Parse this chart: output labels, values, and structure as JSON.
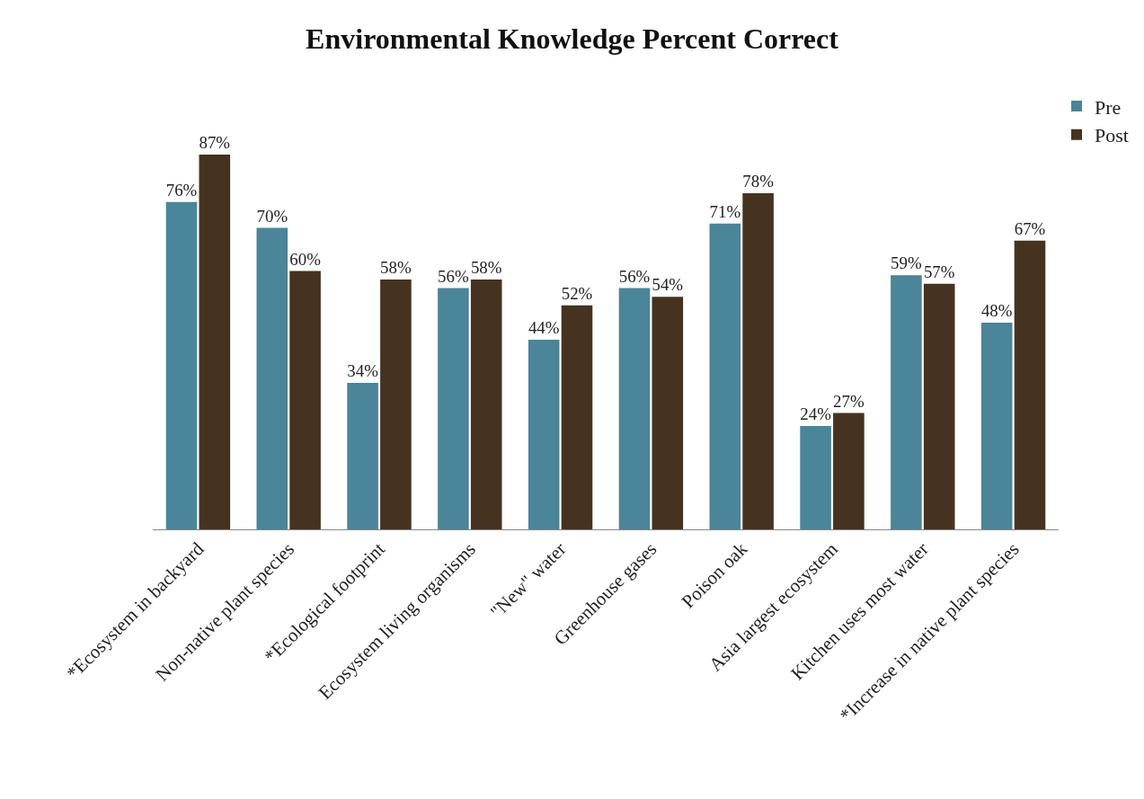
{
  "chart_data": {
    "type": "bar",
    "title": "Environmental Knowledge Percent Correct",
    "categories": [
      "*Ecosystem in backyard",
      "Non-native plant species",
      "*Ecological footprint",
      "Ecosystem living organisms",
      "\"New\" water",
      "Greenhouse gases",
      "Poison oak",
      "Asia largest ecosystem",
      "Kitchen uses most water",
      "*Increase in native plant species"
    ],
    "series": [
      {
        "name": "Pre",
        "color": "#4a8599",
        "values": [
          76,
          70,
          34,
          56,
          44,
          56,
          71,
          24,
          59,
          48
        ],
        "value_labels": [
          "76%",
          "70%",
          "34%",
          "56%",
          "44%",
          "56%",
          "71%",
          "24%",
          "59%",
          "48%"
        ]
      },
      {
        "name": "Post",
        "color": "#45321f",
        "values": [
          87,
          60,
          58,
          58,
          52,
          54,
          78,
          27,
          57,
          67
        ],
        "value_labels": [
          "87%",
          "60%",
          "58%",
          "58%",
          "52%",
          "54%",
          "78%",
          "27%",
          "57%",
          "67%"
        ]
      }
    ],
    "legend": "top right"
  }
}
